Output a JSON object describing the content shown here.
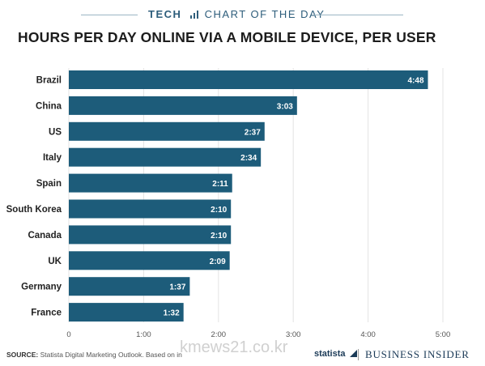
{
  "header": {
    "kicker_bold": "TECH",
    "kicker_rest": "CHART OF THE DAY"
  },
  "chart_data": {
    "type": "bar",
    "orientation": "horizontal",
    "title": "HOURS PER DAY ONLINE VIA A MOBILE DEVICE, PER USER",
    "categories": [
      "Brazil",
      "China",
      "US",
      "Italy",
      "Spain",
      "South Korea",
      "Canada",
      "UK",
      "Germany",
      "France"
    ],
    "values": [
      4.8,
      3.05,
      2.6167,
      2.5667,
      2.1833,
      2.1667,
      2.1667,
      2.15,
      1.6167,
      1.5333
    ],
    "value_labels": [
      "4:48",
      "3:03",
      "2:37",
      "2:34",
      "2:11",
      "2:10",
      "2:10",
      "2:09",
      "1:37",
      "1:32"
    ],
    "xlim": [
      0,
      5
    ],
    "x_ticks": [
      0,
      1,
      2,
      3,
      4,
      5
    ],
    "x_tick_labels": [
      "0",
      "1:00",
      "2:00",
      "3:00",
      "4:00",
      "5:00"
    ],
    "bar_color": "#1d5c7a",
    "value_label_color": "#ffffff",
    "grid": true
  },
  "footer": {
    "source_label": "SOURCE:",
    "source_text": "Statista Digital Marketing Outlook. Based on in",
    "statista": "statista",
    "publisher": "BUSINESS INSIDER"
  },
  "watermark": "kmews21.co.kr",
  "colors": {
    "accent": "#2d5d7b",
    "bar": "#1d5c7a"
  }
}
